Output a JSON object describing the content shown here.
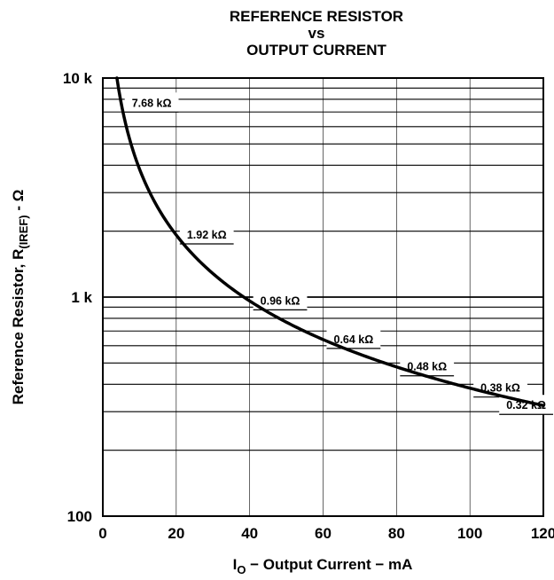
{
  "chart_data": {
    "type": "line",
    "title_lines": [
      "REFERENCE RESISTOR",
      "vs",
      "OUTPUT CURRENT"
    ],
    "xlabel": {
      "main": "I",
      "sub": "O",
      "rest": " − Output Current − mA"
    },
    "ylabel": {
      "main": "Reference Resistor, R",
      "sub": "(IREF)",
      "rest": " - Ω"
    },
    "x_ticks": [
      "0",
      "20",
      "40",
      "60",
      "80",
      "100",
      "120"
    ],
    "y_ticks": [
      "100",
      "1 k",
      "10 k"
    ],
    "xlim": [
      0,
      120
    ],
    "ylim": [
      100,
      10000
    ],
    "y_scale": "log",
    "grid": true,
    "colors": {
      "line": "#000000",
      "grid": "#000000",
      "background": "#ffffff"
    },
    "series": [
      {
        "x": [
          4,
          5,
          10,
          15,
          20,
          30,
          40,
          50,
          60,
          70,
          80,
          90,
          100,
          110,
          120
        ],
        "values": [
          9600,
          7680,
          3840,
          2560,
          1920,
          1280,
          960,
          768,
          640,
          549,
          480,
          427,
          384,
          349,
          320
        ]
      }
    ],
    "annotations": [
      {
        "text": "7.68 kΩ",
        "x": 5,
        "y": 7680
      },
      {
        "text": "1.92 kΩ",
        "x": 20,
        "y": 1920
      },
      {
        "text": "0.96 kΩ",
        "x": 40,
        "y": 960
      },
      {
        "text": "0.64 kΩ",
        "x": 60,
        "y": 640
      },
      {
        "text": "0.48 kΩ",
        "x": 80,
        "y": 480
      },
      {
        "text": "0.38 kΩ",
        "x": 100,
        "y": 384
      },
      {
        "text": "0.32 kΩ",
        "x": 120,
        "y": 320
      }
    ]
  }
}
